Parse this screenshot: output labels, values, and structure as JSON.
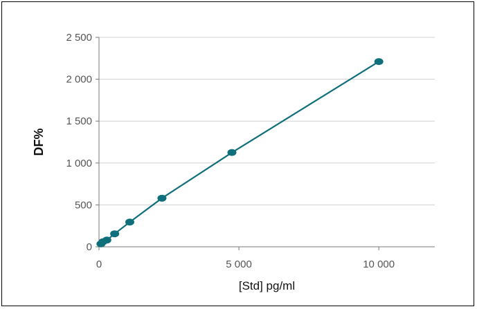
{
  "chart_data": {
    "type": "scatter",
    "title": "",
    "xlabel": "[Std] pg/ml",
    "ylabel": "DF%",
    "xlim": [
      0,
      12000
    ],
    "ylim": [
      0,
      2500
    ],
    "x_ticks": [
      0,
      5000,
      10000
    ],
    "x_tick_labels": [
      "0",
      "5 000",
      "10 000"
    ],
    "y_ticks": [
      0,
      500,
      1000,
      1500,
      2000,
      2500
    ],
    "y_tick_labels": [
      "0",
      "500",
      "1 000",
      "1 500",
      "2 000",
      "2 500"
    ],
    "grid": "horizontal",
    "legend": "none",
    "series": [
      {
        "color": "#0f6f7a",
        "marker": "ellipse",
        "line": "connected",
        "points": [
          {
            "x": 70,
            "y": 35
          },
          {
            "x": 140,
            "y": 60
          },
          {
            "x": 280,
            "y": 80
          },
          {
            "x": 560,
            "y": 155
          },
          {
            "x": 1100,
            "y": 295
          },
          {
            "x": 2250,
            "y": 580
          },
          {
            "x": 4750,
            "y": 1125
          },
          {
            "x": 10000,
            "y": 2210
          }
        ]
      }
    ]
  }
}
